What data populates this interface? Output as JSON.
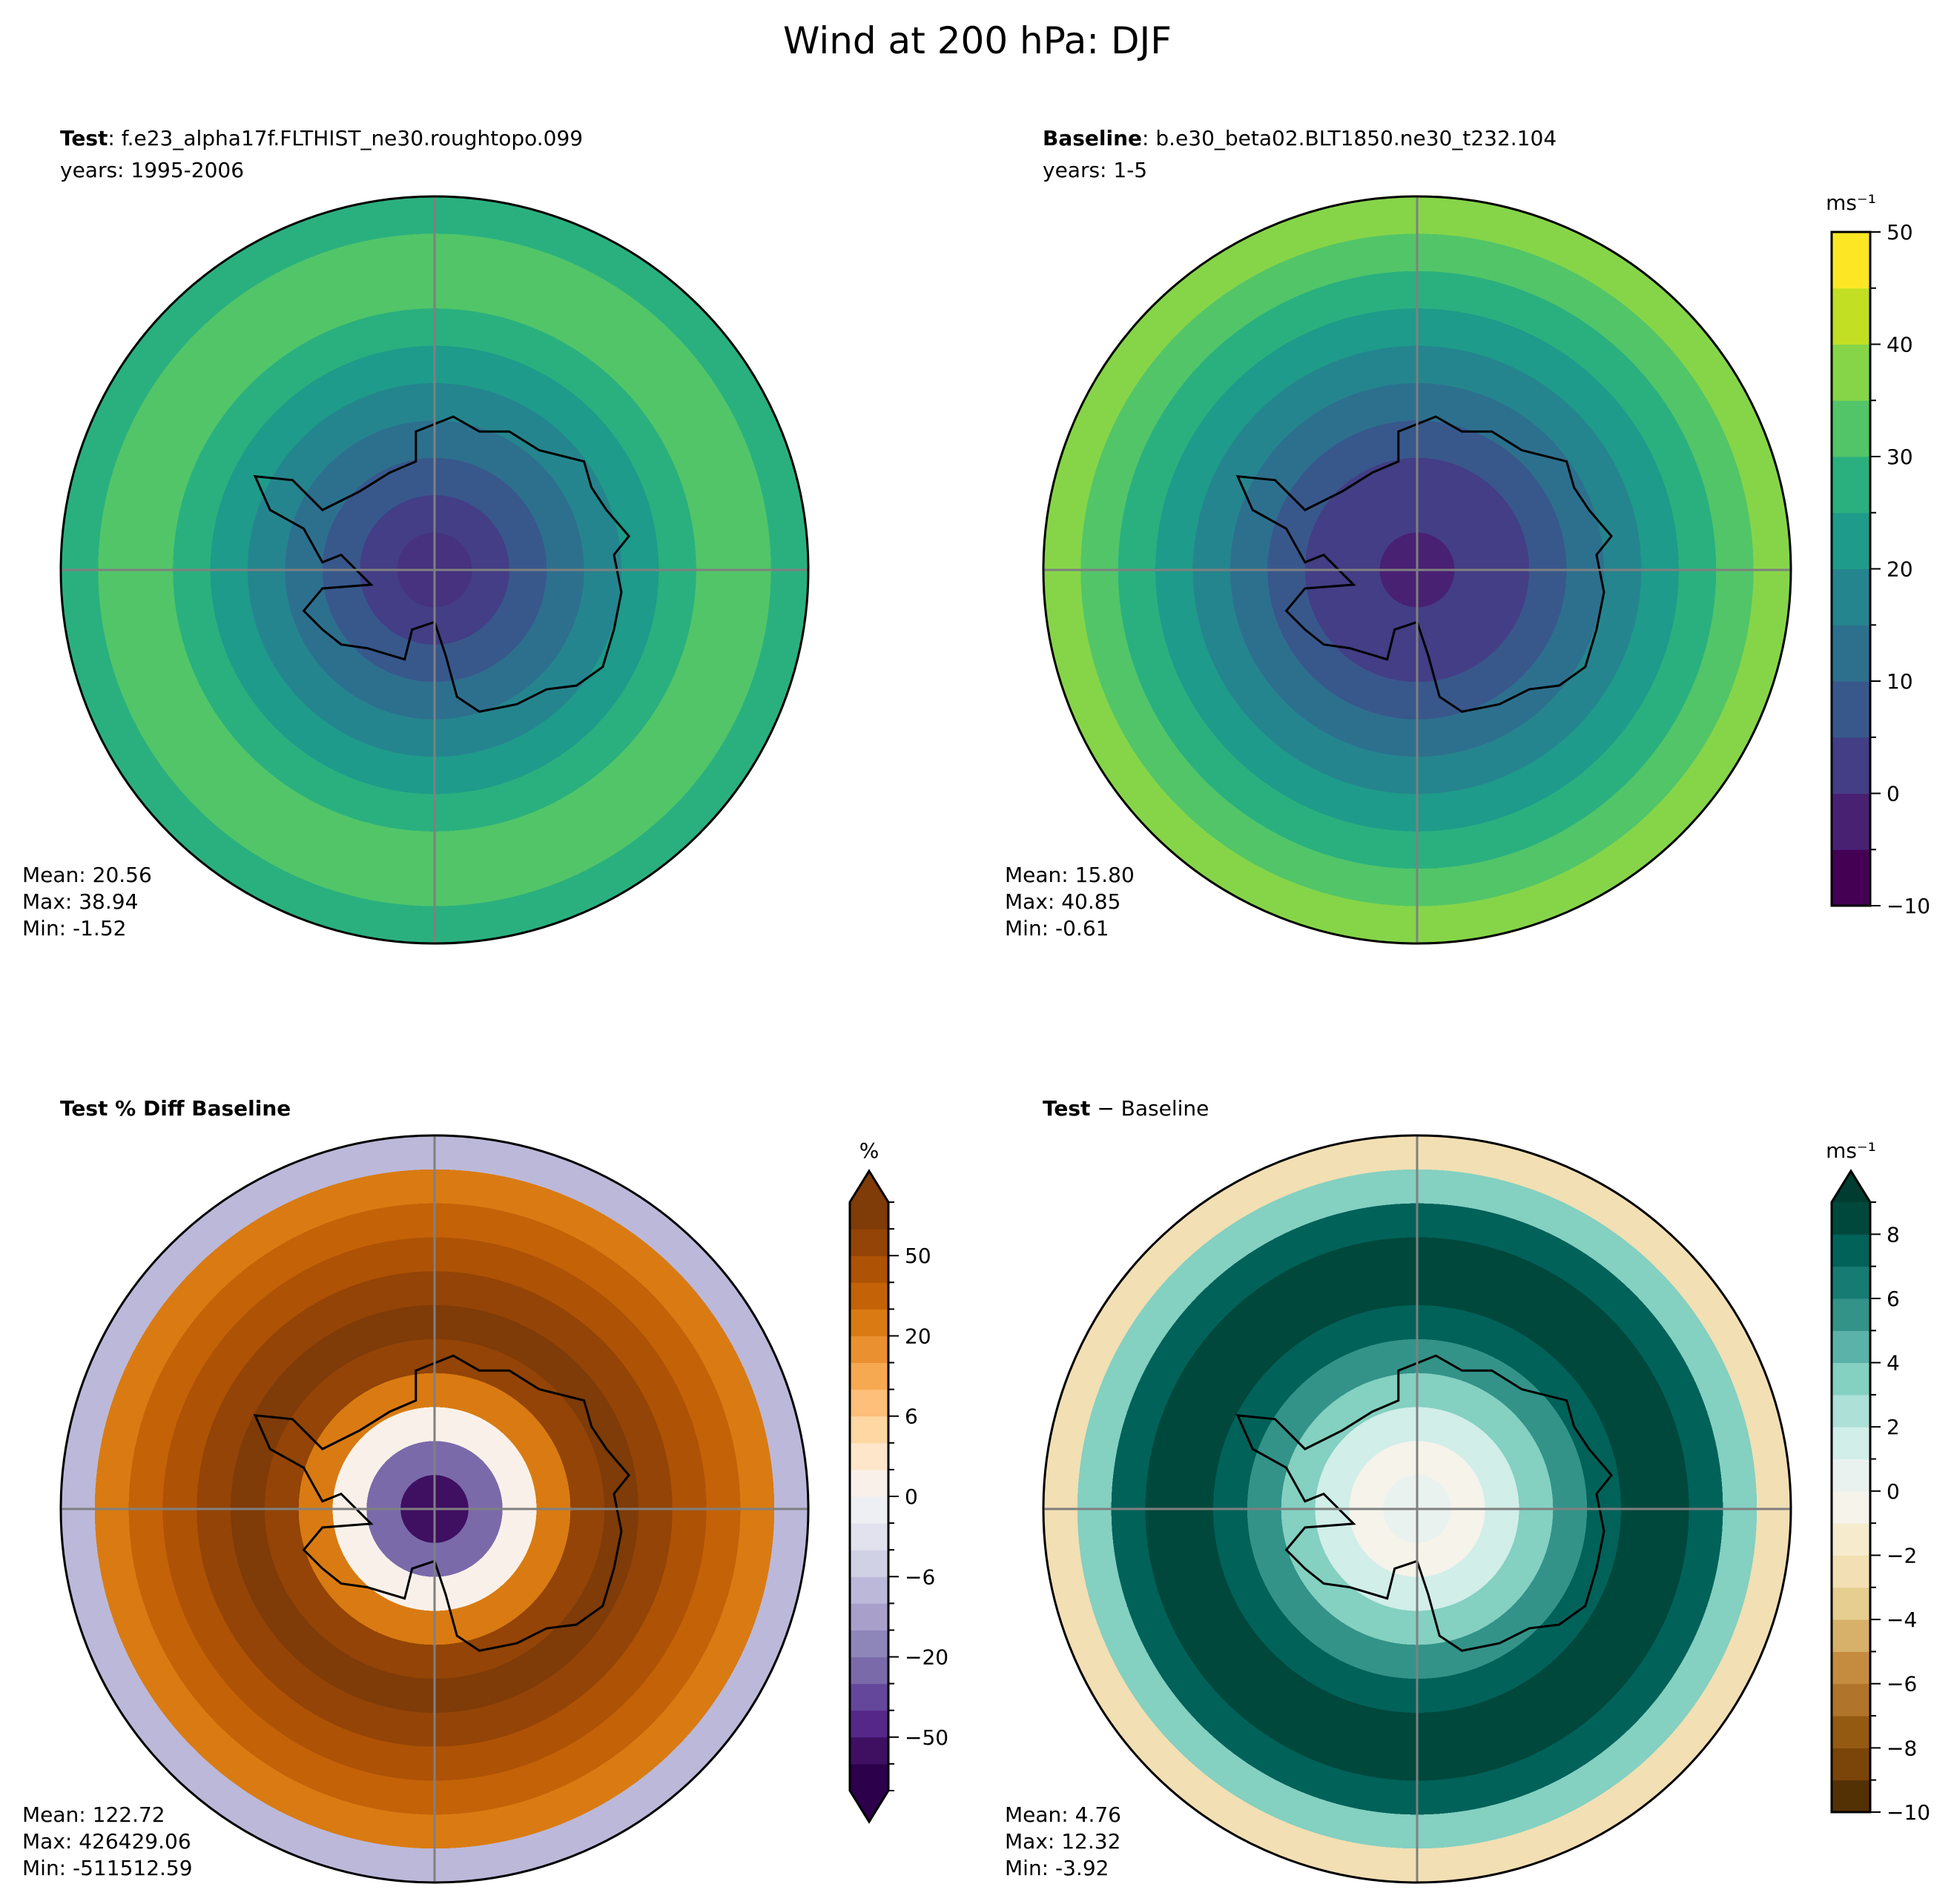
{
  "title": "Wind at 200 hPa: DJF",
  "chart_data": [
    {
      "type": "heatmap",
      "projection": "south-polar-stereographic",
      "title_bold": "Test",
      "title_rest": ": f.e23_alpha17f.FLTHIST_ne30.roughtopo.099",
      "subtitle": "years: 1995-2006",
      "stats": {
        "mean": "Mean: 20.56",
        "max": "Max: 38.94",
        "min": "Min: -1.52"
      },
      "colormap": "viridis",
      "field_stops": [
        "#46327e",
        "#433e85",
        "#38588c",
        "#2d708e",
        "#25858e",
        "#1e9b8a",
        "#2ab07f",
        "#52c569",
        "#52c569",
        "#2ab07f"
      ]
    },
    {
      "type": "heatmap",
      "projection": "south-polar-stereographic",
      "title_bold": "Baseline",
      "title_rest": ": b.e30_beta02.BLT1850.ne30_t232.104",
      "subtitle": "years: 1-5",
      "stats": {
        "mean": "Mean: 15.80",
        "max": "Max: 40.85",
        "min": "Min: -0.61"
      },
      "colormap": "viridis",
      "field_stops": [
        "#482173",
        "#433e85",
        "#433e85",
        "#38588c",
        "#2d708e",
        "#25858e",
        "#1e9b8a",
        "#2ab07f",
        "#52c569",
        "#86d549"
      ],
      "colorbar": {
        "label": "ms⁻¹",
        "levels": [
          -10,
          -5,
          0,
          5,
          10,
          15,
          20,
          25,
          30,
          35,
          40,
          45,
          50
        ],
        "ticks": [
          -10,
          0,
          10,
          20,
          30,
          40,
          50
        ],
        "colors": [
          "#440154",
          "#482173",
          "#433e85",
          "#38588c",
          "#2d708e",
          "#25858e",
          "#1e9b8a",
          "#2ab07f",
          "#52c569",
          "#86d549",
          "#c2df23",
          "#fde725"
        ],
        "extend": "neither"
      }
    },
    {
      "type": "heatmap",
      "projection": "south-polar-stereographic",
      "title_bold": "Test % Diff Baseline",
      "title_rest": "",
      "subtitle": "",
      "stats": {
        "mean": "Mean: 122.72",
        "max": "Max: 426429.06",
        "min": "Min: -511512.59"
      },
      "colormap": "PuOr_r",
      "field_stops": [
        "#3f0f62",
        "#7a6aaa",
        "#f9f1e9",
        "#d97b12",
        "#934406",
        "#7f3b08",
        "#934406",
        "#ae5205",
        "#c46208",
        "#d97b12",
        "#bcb8da"
      ],
      "colorbar": {
        "label": "%",
        "levels": [
          -100,
          -75,
          -50,
          -40,
          -30,
          -20,
          -15,
          -10,
          -6,
          -4,
          -2,
          0,
          2,
          4,
          6,
          10,
          15,
          20,
          30,
          40,
          50,
          75,
          100
        ],
        "ticks": [
          -50,
          -20,
          -6,
          0,
          6,
          20,
          50
        ],
        "colors": [
          "#2d004b",
          "#3f0f62",
          "#542788",
          "#64479a",
          "#7a6aaa",
          "#8e85b9",
          "#a8a0cb",
          "#bcb8da",
          "#d1d1e6",
          "#e2e2ef",
          "#eeeff3",
          "#f9f1e9",
          "#fee6cb",
          "#fed7a3",
          "#fdbf7a",
          "#f7a951",
          "#eb9030",
          "#d97b12",
          "#c46208",
          "#ae5205",
          "#934406",
          "#7f3b08"
        ],
        "extend": "both",
        "extend_colors": [
          "#2d004b",
          "#7f3b08"
        ]
      }
    },
    {
      "type": "heatmap",
      "projection": "south-polar-stereographic",
      "title_bold": "Test",
      "title_rest": " − Baseline",
      "subtitle": "",
      "stats": {
        "mean": "Mean:  4.76",
        "max": "Max: 12.32",
        "min": "Min: -3.92"
      },
      "colormap": "BrBG",
      "field_stops": [
        "#eaf2f0",
        "#f5f3ea",
        "#d1eee9",
        "#84d0c1",
        "#339389",
        "#01625a",
        "#00483c",
        "#00483c",
        "#01625a",
        "#84d0c1",
        "#f2dfb3"
      ],
      "colorbar": {
        "label": "ms⁻¹",
        "levels": [
          -10,
          -9,
          -8,
          -7,
          -6,
          -5,
          -4,
          -3,
          -2,
          -1,
          0,
          1,
          2,
          3,
          4,
          5,
          6,
          7,
          8,
          9
        ],
        "ticks": [
          -10,
          -8,
          -6,
          -4,
          -2,
          0,
          2,
          4,
          6,
          8
        ],
        "colors": [
          "#543005",
          "#7b4408",
          "#955a12",
          "#b0742a",
          "#c58c40",
          "#d7b06a",
          "#e6cd90",
          "#f2dfb3",
          "#f6ebcd",
          "#f5f3ea",
          "#eaf2f0",
          "#d1eee9",
          "#ade0d7",
          "#84d0c1",
          "#5ab2a8",
          "#339389",
          "#167b73",
          "#01625a",
          "#00483c"
        ],
        "extend": "max",
        "extend_colors": [
          null,
          "#003c30"
        ]
      }
    }
  ]
}
